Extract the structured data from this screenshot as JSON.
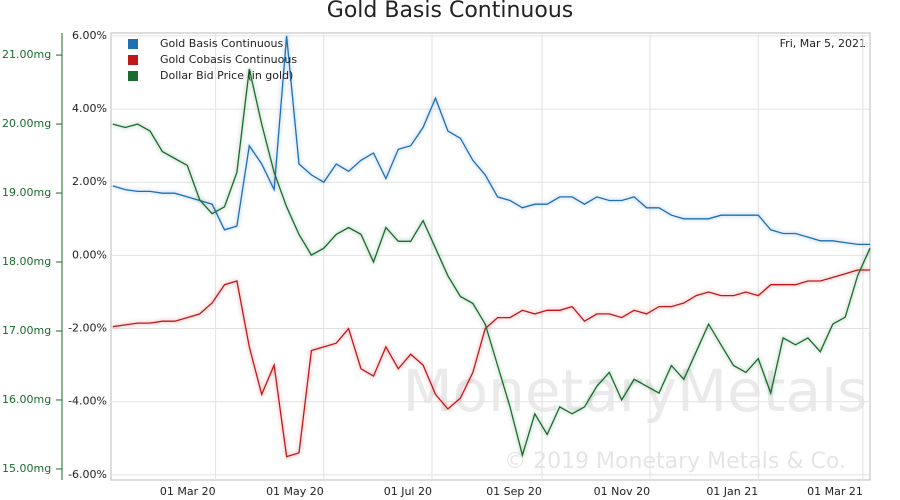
{
  "chart_data": {
    "type": "line",
    "title": "Gold Basis Continuous",
    "date_label": "Fri, Mar 5, 2021",
    "watermark": "MonetaryMetals",
    "copyright": "© 2019 Monetary Metals & Co.",
    "x": [
      "2020-01-03",
      "2020-01-10",
      "2020-01-17",
      "2020-01-24",
      "2020-01-31",
      "2020-02-07",
      "2020-02-14",
      "2020-02-21",
      "2020-02-28",
      "2020-03-06",
      "2020-03-13",
      "2020-03-20",
      "2020-03-27",
      "2020-04-03",
      "2020-04-10",
      "2020-04-17",
      "2020-04-24",
      "2020-05-01",
      "2020-05-08",
      "2020-05-15",
      "2020-05-22",
      "2020-05-29",
      "2020-06-05",
      "2020-06-12",
      "2020-06-19",
      "2020-06-26",
      "2020-07-03",
      "2020-07-10",
      "2020-07-17",
      "2020-07-24",
      "2020-07-31",
      "2020-08-07",
      "2020-08-14",
      "2020-08-21",
      "2020-08-28",
      "2020-09-04",
      "2020-09-11",
      "2020-09-18",
      "2020-09-25",
      "2020-10-02",
      "2020-10-09",
      "2020-10-16",
      "2020-10-23",
      "2020-10-30",
      "2020-11-06",
      "2020-11-13",
      "2020-11-20",
      "2020-11-27",
      "2020-12-04",
      "2020-12-11",
      "2020-12-18",
      "2020-12-25",
      "2021-01-01",
      "2021-01-08",
      "2021-01-15",
      "2021-01-22",
      "2021-01-29",
      "2021-02-05",
      "2021-02-12",
      "2021-02-19",
      "2021-02-26",
      "2021-03-05"
    ],
    "xlim": [
      "2020-01-02",
      "2021-03-05"
    ],
    "xticks": [
      {
        "value": "2020-03-01",
        "label": "01 Mar 20"
      },
      {
        "value": "2020-05-01",
        "label": "01 May 20"
      },
      {
        "value": "2020-07-01",
        "label": "01 Jul 20"
      },
      {
        "value": "2020-09-01",
        "label": "01 Sep 20"
      },
      {
        "value": "2020-11-01",
        "label": "01 Nov 20"
      },
      {
        "value": "2021-01-01",
        "label": "01 Jan 21"
      },
      {
        "value": "2021-03-01",
        "label": "01 Mar 21"
      }
    ],
    "ylim": [
      -6.14,
      6.08
    ],
    "yticks": [
      {
        "value": -6,
        "label": "-6.00%"
      },
      {
        "value": -4,
        "label": "-4.00%"
      },
      {
        "value": -2,
        "label": "-2.00%"
      },
      {
        "value": 0,
        "label": "0.00%"
      },
      {
        "value": 2,
        "label": "2.00%"
      },
      {
        "value": 4,
        "label": "4.00%"
      },
      {
        "value": 6,
        "label": "6.00%"
      }
    ],
    "y2lim": [
      14.84,
      21.32
    ],
    "y2ticks": [
      {
        "value": 15,
        "label": "15.00mg"
      },
      {
        "value": 16,
        "label": "16.00mg"
      },
      {
        "value": 17,
        "label": "17.00mg"
      },
      {
        "value": 18,
        "label": "18.00mg"
      },
      {
        "value": 19,
        "label": "19.00mg"
      },
      {
        "value": 20,
        "label": "20.00mg"
      },
      {
        "value": 21,
        "label": "21.00mg"
      }
    ],
    "grid": true,
    "series": [
      {
        "name": "Gold Basis Continuous",
        "color": "#1f6fb5",
        "values": [
          1.9,
          1.8,
          1.75,
          1.75,
          1.7,
          1.7,
          1.6,
          1.5,
          1.4,
          0.7,
          0.8,
          3.0,
          2.5,
          1.8,
          6.0,
          2.5,
          2.2,
          2.0,
          2.5,
          2.3,
          2.6,
          2.8,
          2.1,
          2.9,
          3.0,
          3.5,
          4.3,
          3.4,
          3.2,
          2.6,
          2.2,
          1.6,
          1.5,
          1.3,
          1.4,
          1.4,
          1.6,
          1.6,
          1.4,
          1.6,
          1.5,
          1.5,
          1.6,
          1.3,
          1.3,
          1.1,
          1.0,
          1.0,
          1.0,
          1.1,
          1.1,
          1.1,
          1.1,
          0.7,
          0.6,
          0.6,
          0.5,
          0.4,
          0.4,
          0.35,
          0.3,
          0.3
        ]
      },
      {
        "name": "Gold Cobasis Continuous",
        "color": "#c0181a",
        "values": [
          -1.95,
          -1.9,
          -1.85,
          -1.85,
          -1.8,
          -1.8,
          -1.7,
          -1.6,
          -1.3,
          -0.8,
          -0.7,
          -2.5,
          -3.8,
          -3.0,
          -5.5,
          -5.4,
          -2.6,
          -2.5,
          -2.4,
          -2.0,
          -3.1,
          -3.3,
          -2.5,
          -3.1,
          -2.7,
          -3.0,
          -3.8,
          -4.2,
          -3.9,
          -3.2,
          -2.0,
          -1.7,
          -1.7,
          -1.5,
          -1.6,
          -1.5,
          -1.5,
          -1.4,
          -1.8,
          -1.6,
          -1.6,
          -1.7,
          -1.5,
          -1.6,
          -1.4,
          -1.4,
          -1.3,
          -1.1,
          -1.0,
          -1.1,
          -1.1,
          -1.0,
          -1.1,
          -0.8,
          -0.8,
          -0.8,
          -0.7,
          -0.7,
          -0.6,
          -0.5,
          -0.4,
          -0.4
        ]
      },
      {
        "name": "Dollar Bid Price (in gold)",
        "color": "#1a6b2e",
        "axis": "y2",
        "values": [
          20.0,
          19.95,
          20.0,
          19.9,
          19.6,
          19.5,
          19.4,
          18.9,
          18.7,
          18.8,
          19.3,
          20.8,
          20.0,
          19.3,
          18.8,
          18.4,
          18.1,
          18.2,
          18.4,
          18.5,
          18.4,
          18.0,
          18.5,
          18.3,
          18.3,
          18.6,
          18.2,
          17.8,
          17.5,
          17.4,
          17.1,
          16.5,
          15.9,
          15.2,
          15.8,
          15.5,
          15.9,
          15.8,
          15.9,
          16.2,
          16.4,
          16.0,
          16.3,
          16.2,
          16.1,
          16.5,
          16.3,
          16.7,
          17.1,
          16.8,
          16.5,
          16.4,
          16.6,
          16.1,
          16.9,
          16.8,
          16.9,
          16.7,
          17.1,
          17.2,
          17.8,
          18.2
        ]
      }
    ]
  }
}
